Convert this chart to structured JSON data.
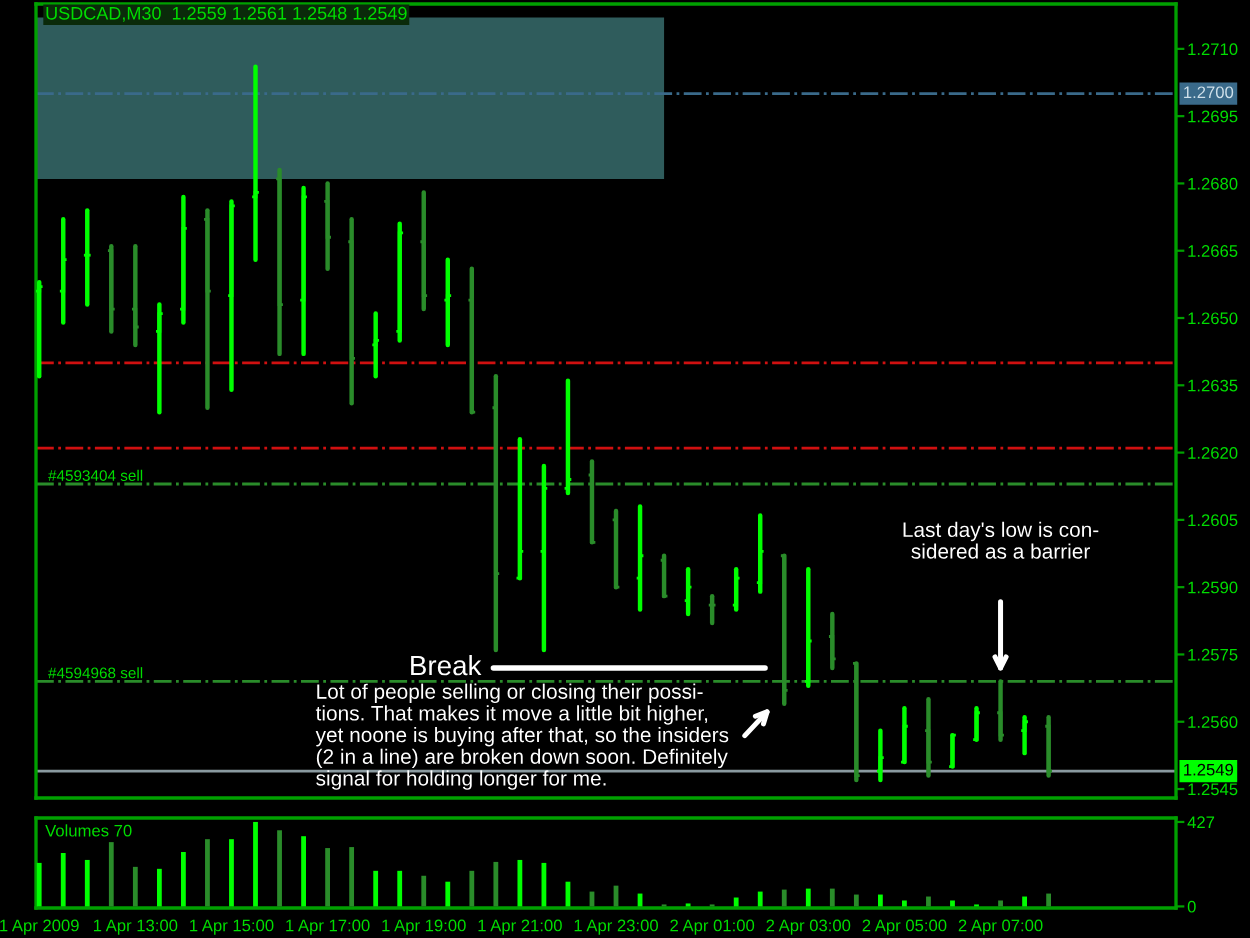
{
  "chart_data": [
    {
      "type": "candlestick",
      "title": "USDCAD,M30  1.2559 1.2561 1.2548 1.2549",
      "x": [
        "2009-04-01T11:00",
        "2009-04-01T11:30",
        "2009-04-01T12:00",
        "2009-04-01T12:30",
        "2009-04-01T13:00",
        "2009-04-01T13:30",
        "2009-04-01T14:00",
        "2009-04-01T14:30",
        "2009-04-01T15:00",
        "2009-04-01T15:30",
        "2009-04-01T16:00",
        "2009-04-01T16:30",
        "2009-04-01T17:00",
        "2009-04-01T17:30",
        "2009-04-01T18:00",
        "2009-04-01T18:30",
        "2009-04-01T19:00",
        "2009-04-01T19:30",
        "2009-04-01T20:00",
        "2009-04-01T20:30",
        "2009-04-01T21:00",
        "2009-04-01T21:30",
        "2009-04-01T22:00",
        "2009-04-01T22:30",
        "2009-04-01T23:00",
        "2009-04-01T23:30",
        "2009-04-02T00:00",
        "2009-04-02T00:30",
        "2009-04-02T01:00",
        "2009-04-02T01:30",
        "2009-04-02T02:00",
        "2009-04-02T02:30",
        "2009-04-02T03:00",
        "2009-04-02T03:30",
        "2009-04-02T04:00",
        "2009-04-02T04:30",
        "2009-04-02T05:00",
        "2009-04-02T05:30",
        "2009-04-02T06:00",
        "2009-04-02T06:30",
        "2009-04-02T07:00",
        "2009-04-02T07:30",
        "2009-04-02T08:00"
      ],
      "ohlc": [
        [
          1.2656,
          1.2658,
          1.2637,
          1.2657
        ],
        [
          1.2656,
          1.2672,
          1.2649,
          1.2663
        ],
        [
          1.2664,
          1.2674,
          1.2653,
          1.2664
        ],
        [
          1.2665,
          1.2666,
          1.2647,
          1.2652
        ],
        [
          1.2652,
          1.2666,
          1.2644,
          1.2648
        ],
        [
          1.2647,
          1.2653,
          1.2629,
          1.2651
        ],
        [
          1.2652,
          1.2677,
          1.2649,
          1.267
        ],
        [
          1.2672,
          1.2674,
          1.263,
          1.2656
        ],
        [
          1.2655,
          1.2676,
          1.2634,
          1.2675
        ],
        [
          1.2677,
          1.2706,
          1.2663,
          1.2678
        ],
        [
          1.2681,
          1.2683,
          1.2642,
          1.2653
        ],
        [
          1.2654,
          1.2679,
          1.2642,
          1.2677
        ],
        [
          1.2676,
          1.268,
          1.2661,
          1.2668
        ],
        [
          1.2667,
          1.2672,
          1.2631,
          1.2641
        ],
        [
          1.2644,
          1.2651,
          1.2637,
          1.2645
        ],
        [
          1.2647,
          1.2671,
          1.2645,
          1.2669
        ],
        [
          1.2667,
          1.2678,
          1.2652,
          1.2655
        ],
        [
          1.2654,
          1.2663,
          1.2644,
          1.2655
        ],
        [
          1.2654,
          1.2661,
          1.2629,
          1.2629
        ],
        [
          1.263,
          1.2637,
          1.2576,
          1.2593
        ],
        [
          1.2592,
          1.2623,
          1.2592,
          1.2598
        ],
        [
          1.2598,
          1.2617,
          1.2576,
          1.2612
        ],
        [
          1.2612,
          1.2636,
          1.2611,
          1.2614
        ],
        [
          1.2615,
          1.2618,
          1.26,
          1.26
        ],
        [
          1.2605,
          1.2607,
          1.259,
          1.259
        ],
        [
          1.2592,
          1.2608,
          1.2585,
          1.2597
        ],
        [
          1.2596,
          1.2597,
          1.2588,
          1.2588
        ],
        [
          1.2587,
          1.2594,
          1.2584,
          1.259
        ],
        [
          1.2586,
          1.2588,
          1.2582,
          1.2586
        ],
        [
          1.2586,
          1.2594,
          1.2585,
          1.2592
        ],
        [
          1.2591,
          1.2606,
          1.2589,
          1.2598
        ],
        [
          1.2597,
          1.2597,
          1.2564,
          1.2567
        ],
        [
          1.2569,
          1.2594,
          1.2568,
          1.2578
        ],
        [
          1.2579,
          1.2584,
          1.2572,
          1.2574
        ],
        [
          1.2573,
          1.2573,
          1.2547,
          1.2548
        ],
        [
          1.2549,
          1.2558,
          1.2547,
          1.2552
        ],
        [
          1.2551,
          1.2563,
          1.2551,
          1.2559
        ],
        [
          1.2558,
          1.2565,
          1.2548,
          1.2551
        ],
        [
          1.255,
          1.2557,
          1.255,
          1.2557
        ],
        [
          1.2556,
          1.2563,
          1.2556,
          1.2562
        ],
        [
          1.2562,
          1.2569,
          1.2556,
          1.2557
        ],
        [
          1.2558,
          1.2561,
          1.2553,
          1.256
        ],
        [
          1.2559,
          1.2561,
          1.2548,
          1.2549
        ]
      ],
      "colors": [
        "#00ff00",
        "#00ff00",
        "#00ff00",
        "#2a8c2a",
        "#2a8c2a",
        "#00ff00",
        "#00ff00",
        "#2a8c2a",
        "#00ff00",
        "#00ff00",
        "#2a8c2a",
        "#00ff00",
        "#2a8c2a",
        "#2a8c2a",
        "#00ff00",
        "#00ff00",
        "#2a8c2a",
        "#00ff00",
        "#2a8c2a",
        "#2a8c2a",
        "#00ff00",
        "#00ff00",
        "#00ff00",
        "#2a8c2a",
        "#2a8c2a",
        "#00ff00",
        "#2a8c2a",
        "#00ff00",
        "#2a8c2a",
        "#00ff00",
        "#00ff00",
        "#2a8c2a",
        "#00ff00",
        "#2a8c2a",
        "#2a8c2a",
        "#00ff00",
        "#00ff00",
        "#2a8c2a",
        "#00ff00",
        "#00ff00",
        "#2a8c2a",
        "#00ff00",
        "#2a8c2a"
      ],
      "xlim": [
        "2009-04-01T10:56",
        "2009-04-02T10:39"
      ],
      "ylim": [
        1.2543,
        1.272
      ],
      "yticks": [
        {
          "value": 1.271,
          "label": "1.2710"
        },
        {
          "value": 1.2695,
          "label": "1.2695"
        },
        {
          "value": 1.268,
          "label": "1.2680"
        },
        {
          "value": 1.2665,
          "label": "1.2665"
        },
        {
          "value": 1.265,
          "label": "1.2650"
        },
        {
          "value": 1.2635,
          "label": "1.2635"
        },
        {
          "value": 1.262,
          "label": "1.2620"
        },
        {
          "value": 1.2605,
          "label": "1.2605"
        },
        {
          "value": 1.259,
          "label": "1.2590"
        },
        {
          "value": 1.2575,
          "label": "1.2575"
        },
        {
          "value": 1.256,
          "label": "1.2560"
        },
        {
          "value": 1.2545,
          "label": "1.2545"
        }
      ],
      "tick_labels": "y",
      "ref_lines": [
        {
          "axis": "y",
          "value": 1.27,
          "label": "1.2700",
          "color": "#3a6a8a",
          "line_style": "dashdot"
        },
        {
          "axis": "y",
          "value": 1.264,
          "color": "#d01010",
          "line_style": "dashdot"
        },
        {
          "axis": "y",
          "value": 1.2621,
          "color": "#d01010",
          "line_style": "dashdot"
        },
        {
          "axis": "y",
          "value": 1.2613,
          "label": "#4593404 sell",
          "color": "#2a8c2a",
          "line_style": "dashdot"
        },
        {
          "axis": "y",
          "value": 1.2569,
          "label": "#4594968 sell",
          "color": "#2a8c2a",
          "line_style": "dashdot"
        },
        {
          "axis": "y",
          "value": 1.2549,
          "label": "1.2549",
          "color": "#8a9aa0",
          "line_style": "solid"
        }
      ],
      "annotations": [
        "Break",
        "Lot of people selling or closing their possi-\ntions. That makes it move a little bit higher,\nyet noone is buying after that, so the insiders\n(2 in a line) are broken down soon. Definitely\nsignal for holding longer for me.",
        "Last day's low is con-\nsidered as a barrier"
      ]
    },
    {
      "type": "bar",
      "x": [
        "2009-04-01T11:00",
        "2009-04-01T11:30",
        "2009-04-01T12:00",
        "2009-04-01T12:30",
        "2009-04-01T13:00",
        "2009-04-01T13:30",
        "2009-04-01T14:00",
        "2009-04-01T14:30",
        "2009-04-01T15:00",
        "2009-04-01T15:30",
        "2009-04-01T16:00",
        "2009-04-01T16:30",
        "2009-04-01T17:00",
        "2009-04-01T17:30",
        "2009-04-01T18:00",
        "2009-04-01T18:30",
        "2009-04-01T19:00",
        "2009-04-01T19:30",
        "2009-04-01T20:00",
        "2009-04-01T20:30",
        "2009-04-01T21:00",
        "2009-04-01T21:30",
        "2009-04-01T22:00",
        "2009-04-01T22:30",
        "2009-04-01T23:00",
        "2009-04-01T23:30",
        "2009-04-02T00:00",
        "2009-04-02T00:30",
        "2009-04-02T01:00",
        "2009-04-02T01:30",
        "2009-04-02T02:00",
        "2009-04-02T02:30",
        "2009-04-02T03:00",
        "2009-04-02T03:30",
        "2009-04-02T04:00",
        "2009-04-02T04:30",
        "2009-04-02T05:00",
        "2009-04-02T05:30",
        "2009-04-02T06:00",
        "2009-04-02T06:30",
        "2009-04-02T07:00",
        "2009-04-02T07:30",
        "2009-04-02T08:00"
      ],
      "values": [
        220,
        270,
        235,
        325,
        200,
        190,
        275,
        340,
        340,
        427,
        385,
        355,
        295,
        300,
        180,
        180,
        155,
        125,
        180,
        225,
        235,
        220,
        125,
        75,
        105,
        65,
        10,
        15,
        10,
        45,
        75,
        85,
        90,
        90,
        60,
        60,
        30,
        50,
        30,
        10,
        30,
        50,
        65
      ],
      "colors": [
        "#00ff00",
        "#00ff00",
        "#00ff00",
        "#2a8c2a",
        "#2a8c2a",
        "#00ff00",
        "#00ff00",
        "#2a8c2a",
        "#00ff00",
        "#00ff00",
        "#2a8c2a",
        "#00ff00",
        "#2a8c2a",
        "#2a8c2a",
        "#00ff00",
        "#00ff00",
        "#2a8c2a",
        "#00ff00",
        "#2a8c2a",
        "#2a8c2a",
        "#00ff00",
        "#00ff00",
        "#00ff00",
        "#2a8c2a",
        "#2a8c2a",
        "#00ff00",
        "#2a8c2a",
        "#00ff00",
        "#2a8c2a",
        "#00ff00",
        "#00ff00",
        "#2a8c2a",
        "#00ff00",
        "#2a8c2a",
        "#2a8c2a",
        "#00ff00",
        "#00ff00",
        "#2a8c2a",
        "#00ff00",
        "#00ff00",
        "#2a8c2a",
        "#00ff00",
        "#2a8c2a"
      ],
      "xlim": [
        "2009-04-01T10:56",
        "2009-04-02T10:39"
      ],
      "ylim": [
        -8,
        447
      ],
      "xticks": [
        {
          "value": "2009-04-01T11:00",
          "label": "1 Apr 2009"
        },
        {
          "value": "2009-04-01T13:00",
          "label": "1 Apr 13:00"
        },
        {
          "value": "2009-04-01T15:00",
          "label": "1 Apr 15:00"
        },
        {
          "value": "2009-04-01T17:00",
          "label": "1 Apr 17:00"
        },
        {
          "value": "2009-04-01T19:00",
          "label": "1 Apr 19:00"
        },
        {
          "value": "2009-04-01T21:00",
          "label": "1 Apr 21:00"
        },
        {
          "value": "2009-04-01T23:00",
          "label": "1 Apr 23:00"
        },
        {
          "value": "2009-04-02T01:00",
          "label": "2 Apr 01:00"
        },
        {
          "value": "2009-04-02T03:00",
          "label": "2 Apr 03:00"
        },
        {
          "value": "2009-04-02T05:00",
          "label": "2 Apr 05:00"
        },
        {
          "value": "2009-04-02T07:00",
          "label": "2 Apr 07:00"
        }
      ],
      "yticks": [
        0,
        427
      ],
      "annotations": [
        "Volumes 70"
      ]
    }
  ]
}
